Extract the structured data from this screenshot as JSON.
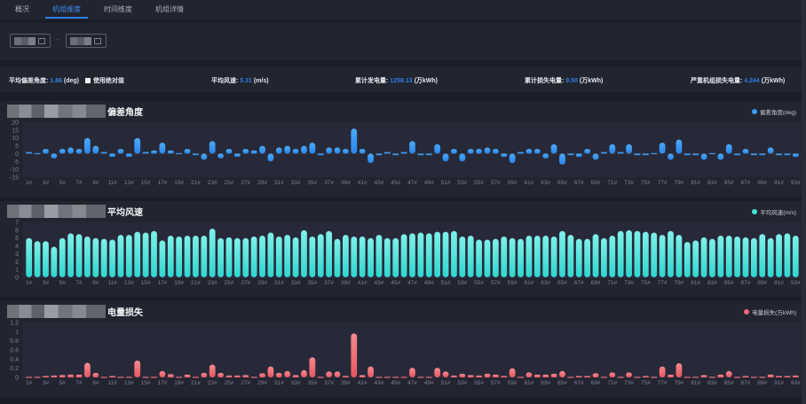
{
  "tabs": [
    {
      "label": "概况",
      "active": false
    },
    {
      "label": "机组维度",
      "active": true
    },
    {
      "label": "时间维度",
      "active": false
    },
    {
      "label": "机组详情",
      "active": false
    }
  ],
  "filter": {
    "separator": "-"
  },
  "stats": {
    "avg_deviation_label": "平均偏差角度:",
    "avg_deviation_value": "1.86",
    "avg_deviation_unit": "(deg)",
    "use_abs_label": "使用绝对值",
    "avg_wind_label": "平均风速:",
    "avg_wind_value": "5.31",
    "avg_wind_unit": "(m/s)",
    "total_gen_label": "累计发电量:",
    "total_gen_value": "1258.13",
    "total_gen_unit": "(万kWh)",
    "total_loss_label": "累计损失电量:",
    "total_loss_value": "9.50",
    "total_loss_unit": "(万kWh)",
    "severe_loss_label": "严重机组损失电量:",
    "severe_loss_value": "4.244",
    "severe_loss_unit": "(万kWh)"
  },
  "colors": {
    "accent": "#2f7fe8",
    "deviation": "#3b9cf5",
    "wind": "#3fe0d8",
    "loss": "#f06a72"
  },
  "chart_data": [
    {
      "type": "bar",
      "title": "偏差角度",
      "legend": "偏差角度(deg)",
      "legend_position": "top-right",
      "ylim": [
        -15,
        20
      ],
      "yticks": [
        20,
        15,
        10,
        5,
        0,
        -5,
        -10,
        -15
      ],
      "categories_count": 93,
      "values": [
        1,
        -0.5,
        3,
        -3,
        3,
        4,
        3,
        10,
        5,
        1,
        -2,
        3,
        -2,
        10,
        1,
        2,
        7,
        2,
        0.5,
        3,
        -1,
        -4,
        8,
        -3,
        3,
        -2,
        3,
        2,
        5,
        -5,
        4,
        5,
        3,
        5,
        7,
        -1,
        4,
        4,
        3,
        16,
        3,
        -6,
        -1,
        1,
        -1,
        1,
        8,
        -1,
        -1,
        6,
        -5,
        3,
        -5,
        3,
        3,
        4,
        3,
        -2,
        -6,
        1,
        3,
        3,
        -3,
        6,
        -7,
        -1,
        -2,
        3,
        -4,
        1,
        6,
        1,
        6,
        -1,
        -1,
        0.5,
        7,
        -4,
        9,
        -1,
        -1,
        -4,
        -0.5,
        -4,
        6,
        -1,
        3,
        -1,
        -1,
        4,
        -1,
        -1,
        -2
      ]
    },
    {
      "type": "bar",
      "title": "平均风速",
      "legend": "平均风速(m/s)",
      "legend_position": "top-right",
      "ylim": [
        0,
        7
      ],
      "yticks": [
        7,
        6,
        5,
        4,
        3,
        2,
        1,
        0
      ],
      "categories_count": 93,
      "values": [
        5.0,
        4.6,
        4.6,
        3.9,
        5.0,
        5.6,
        5.5,
        5.2,
        5.0,
        4.9,
        4.8,
        5.4,
        5.4,
        5.8,
        5.7,
        5.9,
        4.7,
        5.3,
        5.2,
        5.3,
        5.3,
        5.3,
        6.2,
        5.0,
        5.1,
        5.0,
        5.0,
        5.2,
        5.3,
        5.7,
        5.2,
        5.4,
        5.1,
        6.0,
        5.2,
        5.5,
        5.9,
        4.9,
        5.4,
        5.2,
        5.2,
        5.0,
        5.4,
        5.0,
        5.0,
        5.5,
        5.6,
        5.7,
        5.6,
        5.8,
        5.8,
        5.9,
        5.2,
        5.3,
        4.8,
        4.8,
        4.9,
        5.2,
        5.0,
        4.9,
        5.3,
        5.3,
        5.3,
        5.2,
        5.9,
        5.4,
        4.9,
        4.9,
        5.5,
        5.0,
        5.3,
        5.9,
        6.0,
        5.9,
        5.8,
        5.7,
        5.4,
        5.9,
        5.4,
        4.5,
        4.7,
        5.1,
        4.9,
        5.3,
        5.3,
        5.2,
        5.1,
        5.0,
        5.5,
        5.0,
        5.5,
        5.6,
        5.3
      ]
    },
    {
      "type": "bar",
      "title": "电量损失",
      "legend": "电量损失(万kWh)",
      "legend_position": "top-right",
      "ylim": [
        0,
        1.2
      ],
      "yticks": [
        1.2,
        1,
        0.8,
        0.6,
        0.4,
        0.2,
        0
      ],
      "categories_count": 93,
      "values": [
        0.01,
        0.01,
        0.03,
        0.04,
        0.05,
        0.06,
        0.06,
        0.32,
        0.1,
        0.02,
        0.03,
        0.02,
        0.02,
        0.37,
        0.01,
        0.02,
        0.14,
        0.07,
        0.01,
        0.06,
        0,
        0.1,
        0.28,
        0.1,
        0.04,
        0.04,
        0.05,
        0.02,
        0.09,
        0.24,
        0.1,
        0.14,
        0.05,
        0.16,
        0.44,
        0.01,
        0.13,
        0.13,
        0.03,
        0.96,
        0.05,
        0.24,
        0.01,
        0.02,
        0.01,
        0.01,
        0.21,
        0.01,
        0,
        0.21,
        0.13,
        0.04,
        0.08,
        0.05,
        0.04,
        0.08,
        0.06,
        0.03,
        0.2,
        0.01,
        0.11,
        0.06,
        0.06,
        0.08,
        0.14,
        0,
        0.03,
        0.03,
        0.09,
        0.01,
        0.11,
        0.01,
        0.11,
        0.01,
        0.03,
        0,
        0.24,
        0.06,
        0.31,
        0,
        0,
        0.05,
        0,
        0.06,
        0.14,
        0.01,
        0.03,
        0.01,
        0.01,
        0.06,
        0.03,
        0.03,
        0.04
      ]
    }
  ],
  "x_label_suffix": "#"
}
